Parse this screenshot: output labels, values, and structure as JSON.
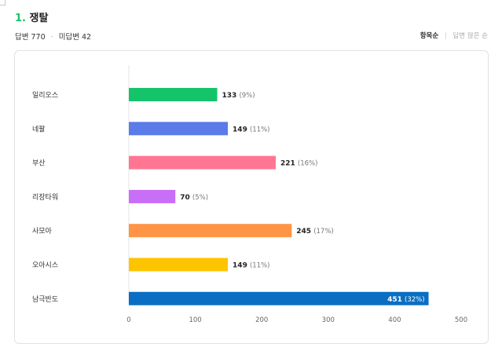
{
  "header": {
    "number": "1.",
    "title": "쟁탈",
    "answered_label": "답변",
    "answered_count": "770",
    "unanswered_label": "미답변",
    "unanswered_count": "42",
    "sort_by_item": "항목순",
    "sort_by_count": "답변 많은 순"
  },
  "chart_data": {
    "type": "bar",
    "orientation": "horizontal",
    "categories": [
      "일리오스",
      "네팔",
      "부산",
      "리장타워",
      "사모아",
      "오아시스",
      "남극반도"
    ],
    "values": [
      133,
      149,
      221,
      70,
      245,
      149,
      451
    ],
    "percent_labels": [
      "(9%)",
      "(11%)",
      "(16%)",
      "(5%)",
      "(17%)",
      "(11%)",
      "(32%)"
    ],
    "colors": [
      "#14c46b",
      "#5b7ce8",
      "#ff7592",
      "#c96ef7",
      "#ff9446",
      "#ffc400",
      "#0a6fc2"
    ],
    "xlim": [
      0,
      500
    ],
    "xticks": [
      0,
      100,
      200,
      300,
      400,
      500
    ],
    "grid": false,
    "label_inside_for_max": true
  }
}
